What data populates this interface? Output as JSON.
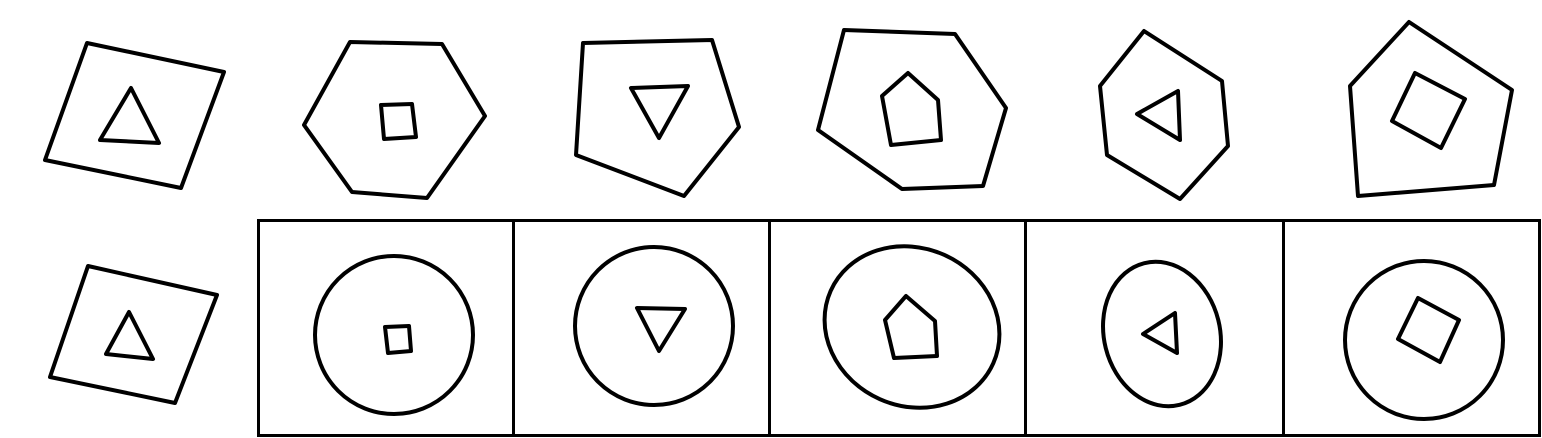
{
  "colors": {
    "stroke": "#000000",
    "background": "#ffffff"
  },
  "puzzle": {
    "sequence": [
      {
        "outer": "square",
        "inner": "triangle"
      },
      {
        "outer": "hexagon",
        "inner": "square"
      },
      {
        "outer": "pentagon",
        "inner": "triangle"
      },
      {
        "outer": "hexagon",
        "inner": "pentagon"
      },
      {
        "outer": "hexagon",
        "inner": "triangle"
      },
      {
        "outer": "pentagon",
        "inner": "square"
      }
    ],
    "transformed": [
      {
        "outer": "square",
        "inner": "triangle",
        "framed": false
      },
      {
        "outer": "circle",
        "inner": "square",
        "framed": true
      },
      {
        "outer": "circle",
        "inner": "triangle",
        "framed": true
      },
      {
        "outer": "ellipse",
        "inner": "pentagon",
        "framed": true
      },
      {
        "outer": "ellipse",
        "inner": "triangle",
        "framed": true
      },
      {
        "outer": "circle",
        "inner": "square",
        "framed": true
      }
    ]
  }
}
